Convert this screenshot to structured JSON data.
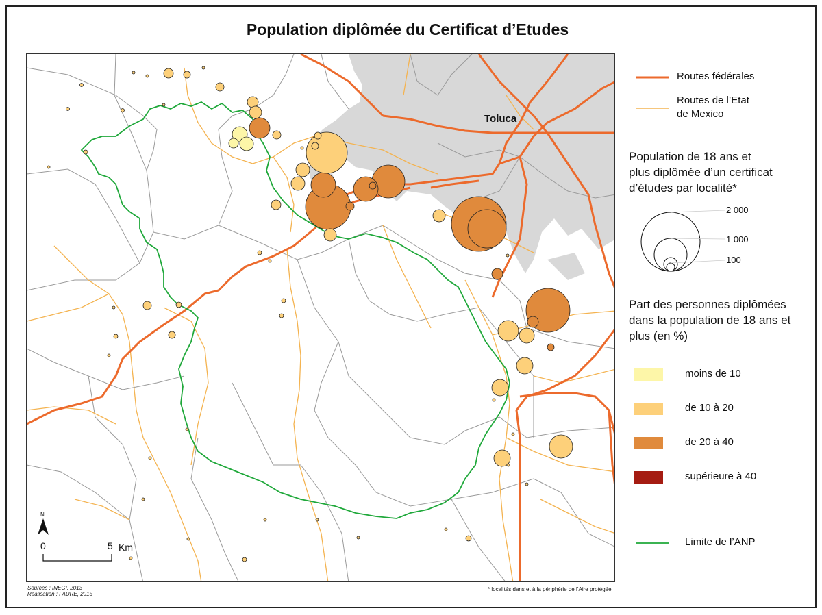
{
  "title": "Population diplômée du Certificat d’Etudes",
  "city": "Toluca",
  "sources": "Sources : INEGI, 2013",
  "realisation": "Réalisation : FAURE, 2015",
  "note": "* localités dans et à la périphérie de l’Aire protégée",
  "legend": {
    "roads_federal": "Routes fédérales",
    "roads_state_1": "Routes de l’Etat",
    "roads_state_2": "de Mexico",
    "size_title_1": "Population de 18 ans et",
    "size_title_2": "plus diplômée d’un certificat",
    "size_title_3": "d’études par localité*",
    "size_values": [
      "2 000",
      "1 000",
      "100"
    ],
    "share_title_1": "Part des personnes diplômées",
    "share_title_2": "dans la population de 18 ans et",
    "share_title_3": "plus (en %)",
    "classes": [
      {
        "label": "moins de 10",
        "color": "#fdf6a8"
      },
      {
        "label": "de 10 à 20",
        "color": "#fdd07a"
      },
      {
        "label": "de 20 à 40",
        "color": "#e08a3c"
      },
      {
        "label": "supérieure à 40",
        "color": "#a51c12"
      }
    ],
    "anp": "Limite de l’ANP"
  },
  "scale": {
    "start": "0",
    "end": "5",
    "unit": "Km",
    "north": "N"
  },
  "colors": {
    "federal_road": "#ec6a2c",
    "state_road": "#f4b350",
    "anp_limit": "#1fa83a",
    "urban": "#d8d8d8",
    "boundary": "#9a9a9a"
  }
}
